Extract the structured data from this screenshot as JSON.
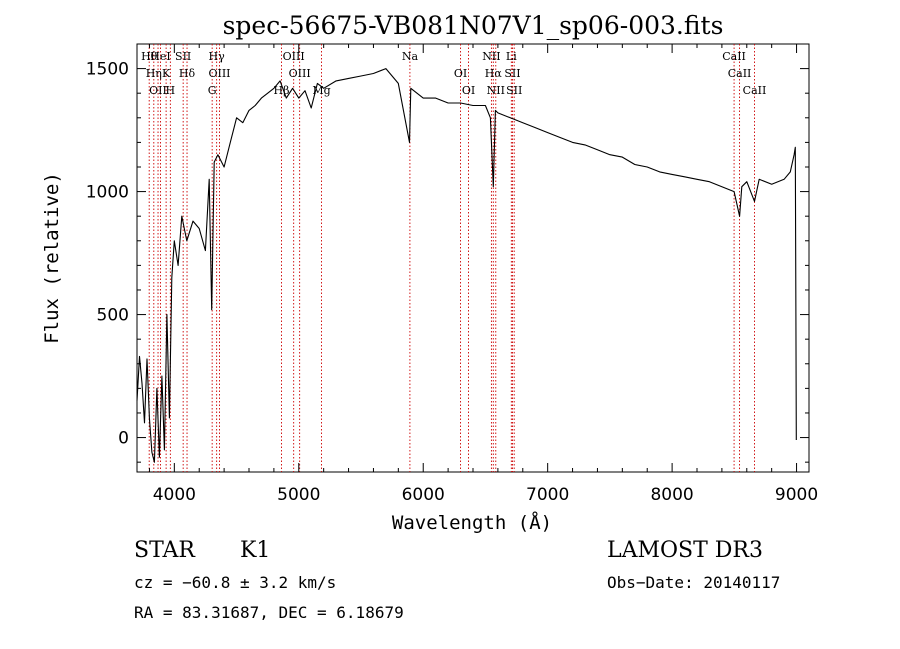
{
  "chart_data": {
    "type": "line",
    "title": "spec-56675-VB081N07V1_sp06-003.fits",
    "xlabel": "Wavelength (Å)",
    "ylabel": "Flux (relative)",
    "xlim": [
      3700,
      9100
    ],
    "ylim": [
      -140,
      1600
    ],
    "xticks": [
      4000,
      5000,
      6000,
      7000,
      8000,
      9000
    ],
    "yticks": [
      0,
      500,
      1000,
      1500
    ],
    "xtick_labels": [
      "4000",
      "5000",
      "6000",
      "7000",
      "8000",
      "9000"
    ],
    "ytick_labels": [
      "0",
      "500",
      "1000",
      "1500"
    ],
    "grid": false,
    "series": [
      {
        "name": "flux",
        "x": [
          3700,
          3720,
          3740,
          3760,
          3780,
          3800,
          3820,
          3840,
          3860,
          3880,
          3900,
          3920,
          3940,
          3960,
          3980,
          4000,
          4030,
          4060,
          4100,
          4150,
          4200,
          4250,
          4280,
          4300,
          4320,
          4350,
          4400,
          4450,
          4500,
          4550,
          4600,
          4650,
          4700,
          4750,
          4800,
          4850,
          4900,
          4950,
          5000,
          5050,
          5100,
          5150,
          5200,
          5300,
          5400,
          5500,
          5600,
          5700,
          5750,
          5800,
          5890,
          5900,
          5950,
          6000,
          6100,
          6200,
          6300,
          6400,
          6500,
          6540,
          6563,
          6580,
          6600,
          6700,
          6800,
          6900,
          7000,
          7100,
          7200,
          7300,
          7400,
          7500,
          7600,
          7700,
          7800,
          7900,
          8000,
          8100,
          8200,
          8300,
          8400,
          8498,
          8542,
          8560,
          8600,
          8662,
          8700,
          8800,
          8900,
          8950,
          8980,
          8990,
          8995,
          8998
        ],
        "y": [
          150,
          330,
          220,
          60,
          320,
          80,
          -60,
          -100,
          200,
          -80,
          250,
          -50,
          500,
          80,
          650,
          800,
          700,
          900,
          800,
          880,
          850,
          760,
          1050,
          520,
          1120,
          1150,
          1100,
          1200,
          1300,
          1280,
          1330,
          1350,
          1380,
          1400,
          1420,
          1450,
          1380,
          1420,
          1380,
          1410,
          1340,
          1440,
          1420,
          1450,
          1460,
          1470,
          1480,
          1500,
          1470,
          1440,
          1200,
          1420,
          1400,
          1380,
          1380,
          1360,
          1360,
          1350,
          1350,
          1300,
          1020,
          1330,
          1320,
          1300,
          1280,
          1260,
          1240,
          1220,
          1200,
          1190,
          1170,
          1150,
          1140,
          1110,
          1100,
          1080,
          1070,
          1060,
          1050,
          1040,
          1020,
          1000,
          900,
          1020,
          1040,
          960,
          1050,
          1030,
          1050,
          1080,
          1150,
          1180,
          500,
          -10
        ]
      }
    ],
    "line_markers": [
      {
        "x": 3798,
        "label": "Hθ"
      },
      {
        "x": 3835,
        "label": "Hη"
      },
      {
        "x": 3869,
        "label": "OII"
      },
      {
        "x": 3889,
        "label": "HeI"
      },
      {
        "x": 3934,
        "label": "K"
      },
      {
        "x": 3968,
        "label": "H"
      },
      {
        "x": 4071,
        "label": "SII"
      },
      {
        "x": 4102,
        "label": "Hδ"
      },
      {
        "x": 4304,
        "label": "G"
      },
      {
        "x": 4340,
        "label": "Hγ"
      },
      {
        "x": 4363,
        "label": "OIII"
      },
      {
        "x": 4861,
        "label": "Hβ"
      },
      {
        "x": 4959,
        "label": "OIII"
      },
      {
        "x": 5007,
        "label": "OIII"
      },
      {
        "x": 5183,
        "label": "Mg"
      },
      {
        "x": 5893,
        "label": "Na"
      },
      {
        "x": 6300,
        "label": "OI"
      },
      {
        "x": 6364,
        "label": "OI"
      },
      {
        "x": 6548,
        "label": "NII"
      },
      {
        "x": 6563,
        "label": "Hα"
      },
      {
        "x": 6583,
        "label": "NII"
      },
      {
        "x": 6708,
        "label": "Li"
      },
      {
        "x": 6717,
        "label": "SII"
      },
      {
        "x": 6731,
        "label": "SII"
      },
      {
        "x": 8498,
        "label": "CaII"
      },
      {
        "x": 8542,
        "label": "CaII"
      },
      {
        "x": 8662,
        "label": "CaII"
      }
    ]
  },
  "info": {
    "class_label": "STAR",
    "subclass": "K1",
    "survey": "LAMOST DR3",
    "cz": "cz = −60.8 ± 3.2 km/s",
    "obs_date": "Obs−Date: 20140117",
    "radec": "RA =  83.31687, DEC =   6.18679"
  },
  "colors": {
    "line": "#000000",
    "marker": "#cc0000",
    "background": "#ffffff"
  }
}
